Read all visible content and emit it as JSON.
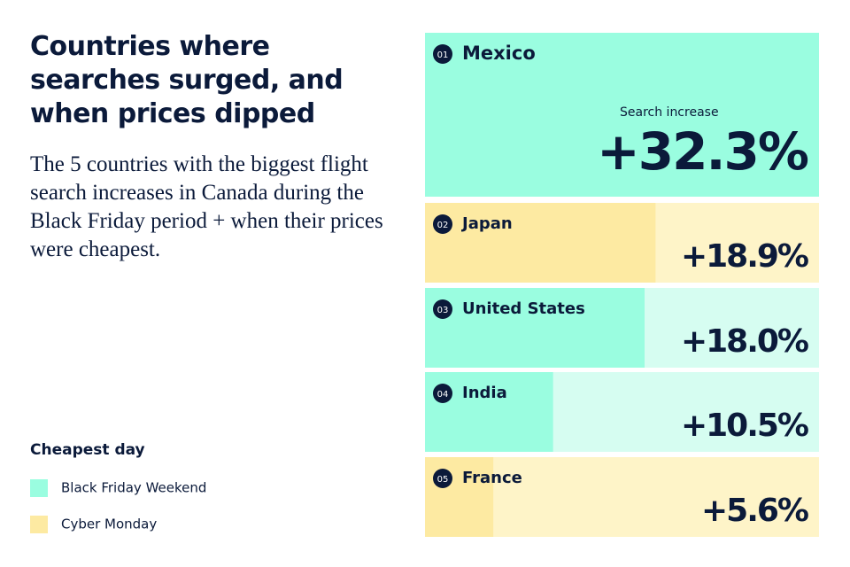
{
  "chart_data": {
    "type": "bar",
    "title": "Countries where searches surged, and when prices dipped",
    "subtitle": "The 5 countries with the biggest flight search increases in Canada during the Black Friday period + when their prices were cheapest.",
    "annotation": "Search increase",
    "ranks": [
      "01",
      "02",
      "03",
      "04",
      "05"
    ],
    "categories": [
      "Mexico",
      "Japan",
      "United States",
      "India",
      "France"
    ],
    "values": [
      32.3,
      18.9,
      18.0,
      10.5,
      5.6
    ],
    "value_labels": [
      "+32.3%",
      "+18.9%",
      "+18.0%",
      "+10.5%",
      "+5.6%"
    ],
    "colors": [
      "#9afde0",
      "#fdeaa2",
      "#9afde0",
      "#9afde0",
      "#fdeaa2"
    ],
    "tints": [
      "#9afde0",
      "#fef4c8",
      "#d6fdf1",
      "#d6fdf1",
      "#fef4c8"
    ],
    "xlim": [
      0,
      32.3
    ],
    "legend": {
      "title": "Cheapest day",
      "items": [
        {
          "label": "Black Friday Weekend",
          "color": "#9afde0"
        },
        {
          "label": "Cyber Monday",
          "color": "#fdeaa2"
        }
      ]
    }
  }
}
